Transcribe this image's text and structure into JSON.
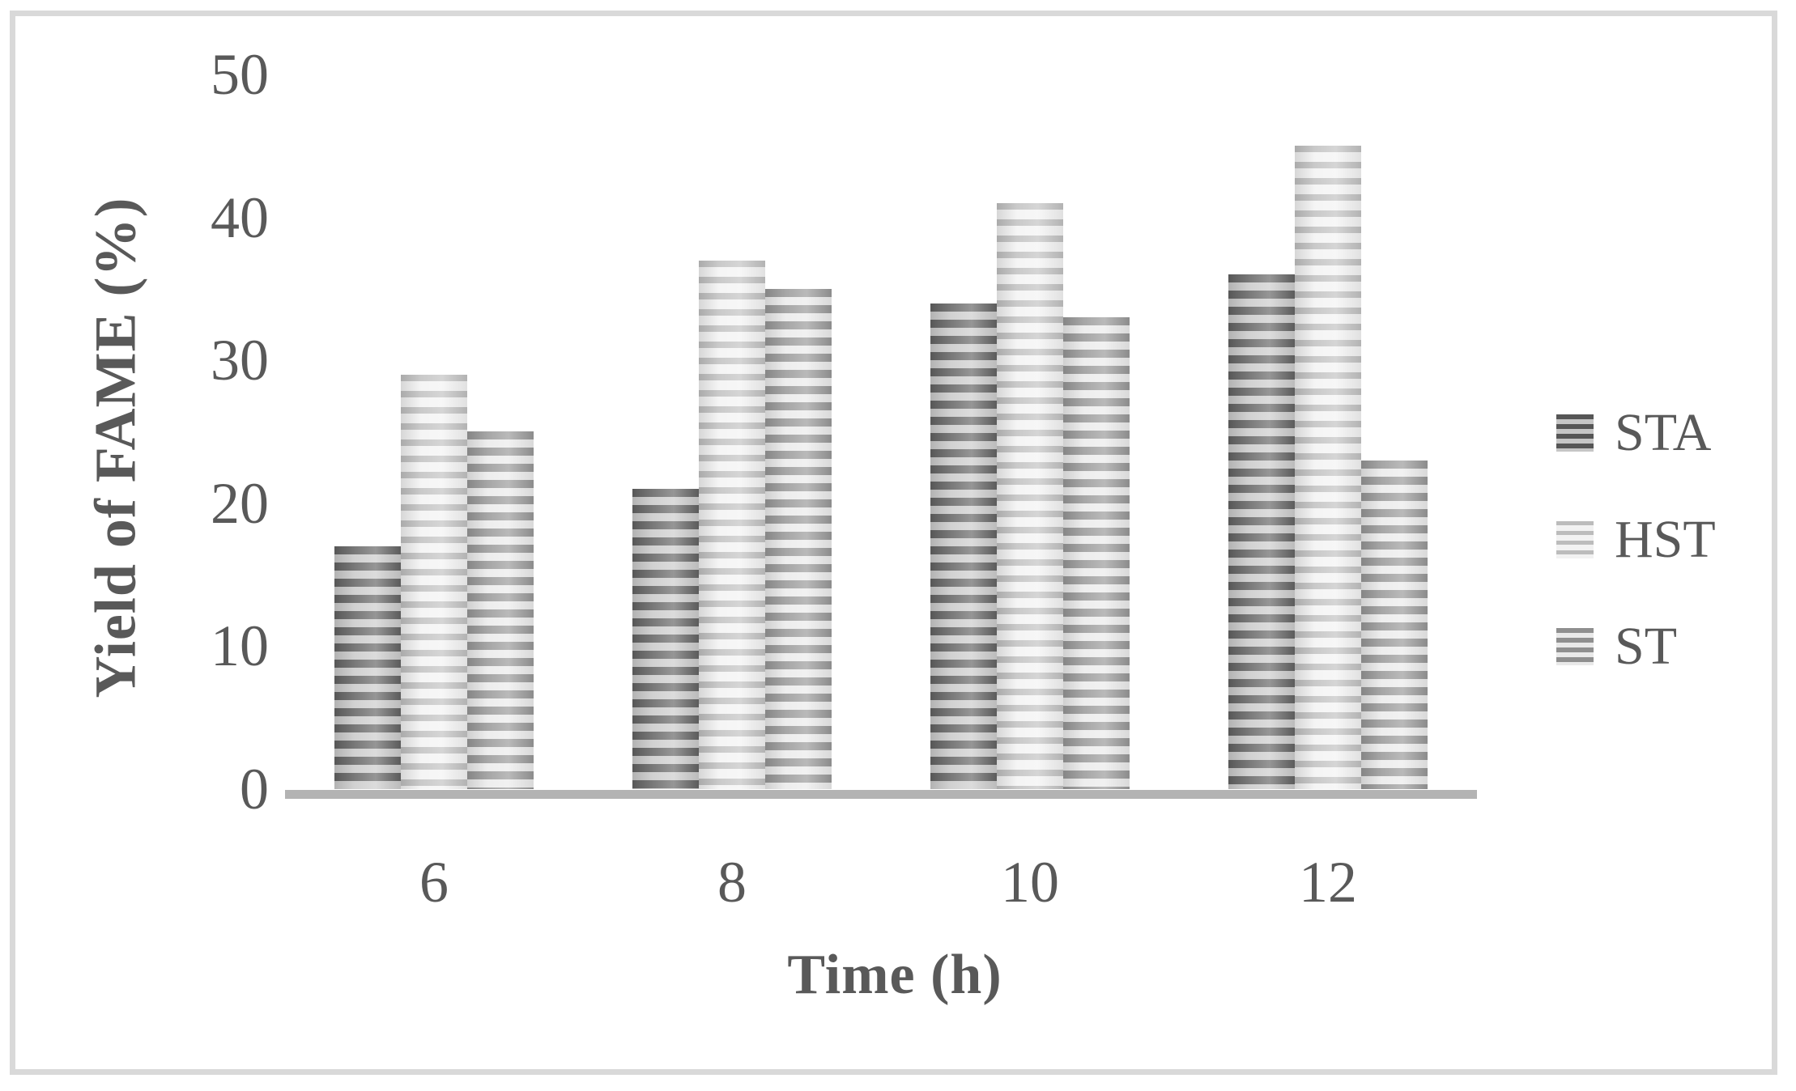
{
  "figure": {
    "background": "#ffffff",
    "border_color": "#d9d9d9"
  },
  "chart_data": {
    "type": "bar",
    "title": "",
    "xlabel": "Time (h)",
    "ylabel": "Yield of FAME (%)",
    "categories": [
      "6",
      "8",
      "10",
      "12"
    ],
    "series": [
      {
        "name": "STA",
        "values": [
          17,
          21,
          34,
          36
        ]
      },
      {
        "name": "HST",
        "values": [
          29,
          37,
          41,
          45
        ]
      },
      {
        "name": "ST",
        "values": [
          25,
          35,
          33,
          23
        ]
      }
    ],
    "ylim": [
      0,
      50
    ],
    "yticks": [
      0,
      10,
      20,
      30,
      40,
      50
    ],
    "grid": false,
    "legend_position": "right",
    "text_color": "#595959",
    "axis_line_color": "#b3b3b3",
    "series_styles": [
      {
        "stripe_dark": "#565656",
        "stripe_light": "#c6c6c6"
      },
      {
        "stripe_dark": "#bcbcbc",
        "stripe_light": "#f2f2f2"
      },
      {
        "stripe_dark": "#8f8f8f",
        "stripe_light": "#e9e9e9"
      }
    ]
  }
}
